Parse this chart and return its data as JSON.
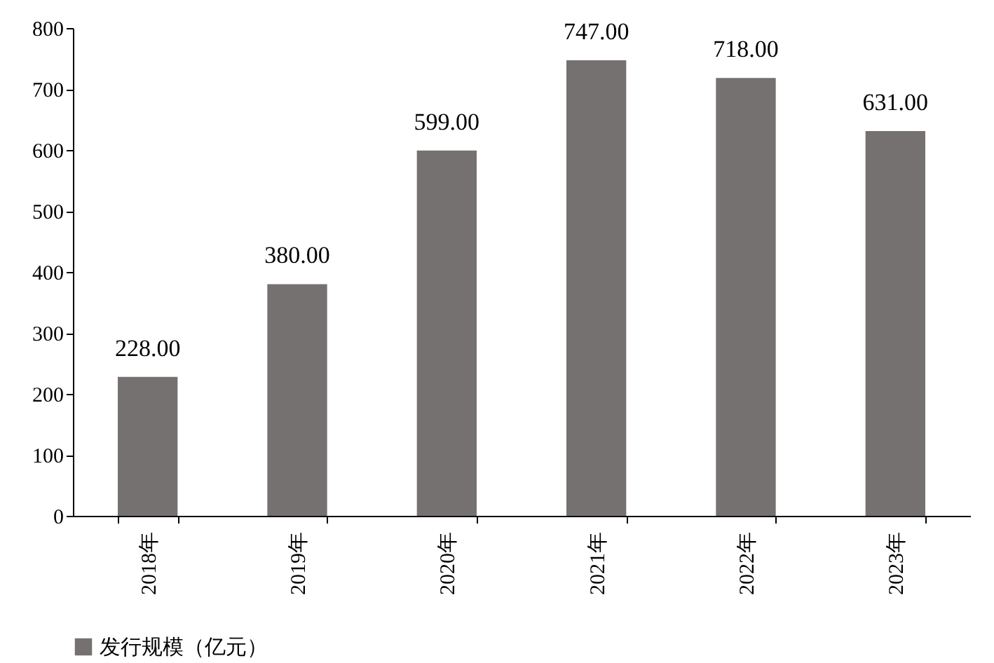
{
  "chart_data": {
    "type": "bar",
    "categories": [
      "2018年",
      "2019年",
      "2020年",
      "2021年",
      "2022年",
      "2023年"
    ],
    "series": [
      {
        "name": "发行规模（亿元）",
        "color": "#767171",
        "values": [
          228,
          380,
          599,
          747,
          718,
          631
        ]
      }
    ],
    "ylim": [
      0,
      800
    ],
    "yticks": [
      0,
      100,
      200,
      300,
      400,
      500,
      600,
      700,
      800
    ],
    "grid": false,
    "legend": "bottom",
    "value_labels": [
      "228.00",
      "380.00",
      "599.00",
      "747.00",
      "718.00",
      "631.00"
    ]
  }
}
